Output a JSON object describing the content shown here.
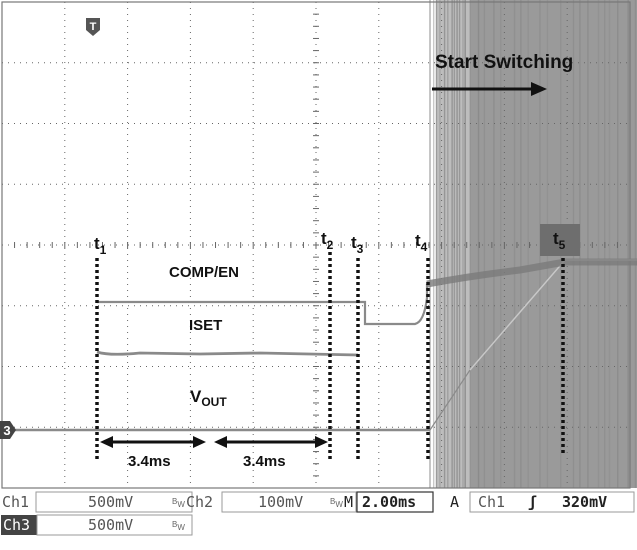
{
  "annotations": {
    "start_switching": "Start Switching",
    "comp_en": "COMP/EN",
    "iset": "ISET",
    "vout_main": "V",
    "vout_sub": "OUT",
    "duration_1": "3.4ms",
    "duration_2": "3.4ms"
  },
  "time_markers": [
    {
      "main": "t",
      "sub": "1"
    },
    {
      "main": "t",
      "sub": "2"
    },
    {
      "main": "t",
      "sub": "3"
    },
    {
      "main": "t",
      "sub": "4"
    },
    {
      "main": "t",
      "sub": "5"
    }
  ],
  "markers": {
    "trigger": "T",
    "ch3_ground": "3"
  },
  "readout": {
    "ch1_label": "Ch1",
    "ch1_scale": "500mV",
    "ch1_bw": "B",
    "ch1_bw_sub": "W",
    "ch2_label": "Ch2",
    "ch2_scale": "100mV",
    "ch2_bw": "B",
    "ch2_bw_sub": "W",
    "timebase_prefix": "M",
    "timebase": "2.00ms",
    "acq": "A",
    "trig_source": "Ch1",
    "trig_slope": "ʃ",
    "trig_level": "320mV",
    "ch3_label": "Ch3",
    "ch3_scale": "500mV",
    "ch3_bw": "B",
    "ch3_bw_sub": "W"
  },
  "colors": {
    "trace": "#8a8a8a",
    "switching_band": "#9a9a9a",
    "grid": "#555555",
    "marker": "#111111"
  }
}
